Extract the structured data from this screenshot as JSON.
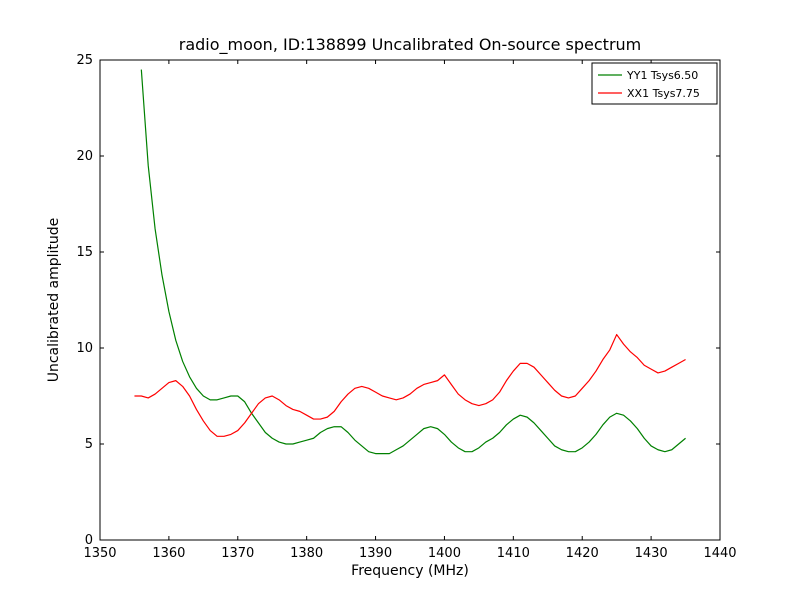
{
  "figure": {
    "background": "#ffffff",
    "axes_edge_color": "#000000"
  },
  "chart_data": {
    "type": "line",
    "title": "radio_moon, ID:138899 Uncalibrated On-source spectrum",
    "xlabel": "Frequency (MHz)",
    "ylabel": "Uncalibrated amplitude",
    "xlim": [
      1350,
      1440
    ],
    "ylim": [
      0,
      25
    ],
    "xticks": [
      1350,
      1360,
      1370,
      1380,
      1390,
      1400,
      1410,
      1420,
      1430,
      1440
    ],
    "yticks": [
      0,
      5,
      10,
      15,
      20,
      25
    ],
    "grid": false,
    "legend_position": "upper right",
    "series": [
      {
        "name": "YY1 Tsys6.50",
        "color": "#008000",
        "x": [
          1356,
          1357,
          1358,
          1359,
          1360,
          1361,
          1362,
          1363,
          1364,
          1365,
          1366,
          1367,
          1368,
          1369,
          1370,
          1371,
          1372,
          1373,
          1374,
          1375,
          1376,
          1377,
          1378,
          1379,
          1380,
          1381,
          1382,
          1383,
          1384,
          1385,
          1386,
          1387,
          1388,
          1389,
          1390,
          1391,
          1392,
          1393,
          1394,
          1395,
          1396,
          1397,
          1398,
          1399,
          1400,
          1401,
          1402,
          1403,
          1404,
          1405,
          1406,
          1407,
          1408,
          1409,
          1410,
          1411,
          1412,
          1413,
          1414,
          1415,
          1416,
          1417,
          1418,
          1419,
          1420,
          1421,
          1422,
          1423,
          1424,
          1425,
          1426,
          1427,
          1428,
          1429,
          1430,
          1431,
          1432,
          1433,
          1434,
          1435
        ],
        "y": [
          24.5,
          19.5,
          16.2,
          13.8,
          11.9,
          10.4,
          9.3,
          8.5,
          7.9,
          7.5,
          7.3,
          7.3,
          7.4,
          7.5,
          7.5,
          7.2,
          6.6,
          6.1,
          5.6,
          5.3,
          5.1,
          5.0,
          5.0,
          5.1,
          5.2,
          5.3,
          5.6,
          5.8,
          5.9,
          5.9,
          5.6,
          5.2,
          4.9,
          4.6,
          4.5,
          4.5,
          4.5,
          4.7,
          4.9,
          5.2,
          5.5,
          5.8,
          5.9,
          5.8,
          5.5,
          5.1,
          4.8,
          4.6,
          4.6,
          4.8,
          5.1,
          5.3,
          5.6,
          6.0,
          6.3,
          6.5,
          6.4,
          6.1,
          5.7,
          5.3,
          4.9,
          4.7,
          4.6,
          4.6,
          4.8,
          5.1,
          5.5,
          6.0,
          6.4,
          6.6,
          6.5,
          6.2,
          5.8,
          5.3,
          4.9,
          4.7,
          4.6,
          4.7,
          5.0,
          5.3
        ]
      },
      {
        "name": "XX1 Tsys7.75",
        "color": "#ff0000",
        "x": [
          1355,
          1356,
          1357,
          1358,
          1359,
          1360,
          1361,
          1362,
          1363,
          1364,
          1365,
          1366,
          1367,
          1368,
          1369,
          1370,
          1371,
          1372,
          1373,
          1374,
          1375,
          1376,
          1377,
          1378,
          1379,
          1380,
          1381,
          1382,
          1383,
          1384,
          1385,
          1386,
          1387,
          1388,
          1389,
          1390,
          1391,
          1392,
          1393,
          1394,
          1395,
          1396,
          1397,
          1398,
          1399,
          1400,
          1401,
          1402,
          1403,
          1404,
          1405,
          1406,
          1407,
          1408,
          1409,
          1410,
          1411,
          1412,
          1413,
          1414,
          1415,
          1416,
          1417,
          1418,
          1419,
          1420,
          1421,
          1422,
          1423,
          1424,
          1425,
          1426,
          1427,
          1428,
          1429,
          1430,
          1431,
          1432,
          1433,
          1434,
          1435
        ],
        "y": [
          7.5,
          7.5,
          7.4,
          7.6,
          7.9,
          8.2,
          8.3,
          8.0,
          7.5,
          6.8,
          6.2,
          5.7,
          5.4,
          5.4,
          5.5,
          5.7,
          6.1,
          6.6,
          7.1,
          7.4,
          7.5,
          7.3,
          7.0,
          6.8,
          6.7,
          6.5,
          6.3,
          6.3,
          6.4,
          6.7,
          7.2,
          7.6,
          7.9,
          8.0,
          7.9,
          7.7,
          7.5,
          7.4,
          7.3,
          7.4,
          7.6,
          7.9,
          8.1,
          8.2,
          8.3,
          8.6,
          8.1,
          7.6,
          7.3,
          7.1,
          7.0,
          7.1,
          7.3,
          7.7,
          8.3,
          8.8,
          9.2,
          9.2,
          9.0,
          8.6,
          8.2,
          7.8,
          7.5,
          7.4,
          7.5,
          7.9,
          8.3,
          8.8,
          9.4,
          9.9,
          10.7,
          10.2,
          9.8,
          9.5,
          9.1,
          8.9,
          8.7,
          8.8,
          9.0,
          9.2,
          9.4
        ]
      }
    ]
  }
}
